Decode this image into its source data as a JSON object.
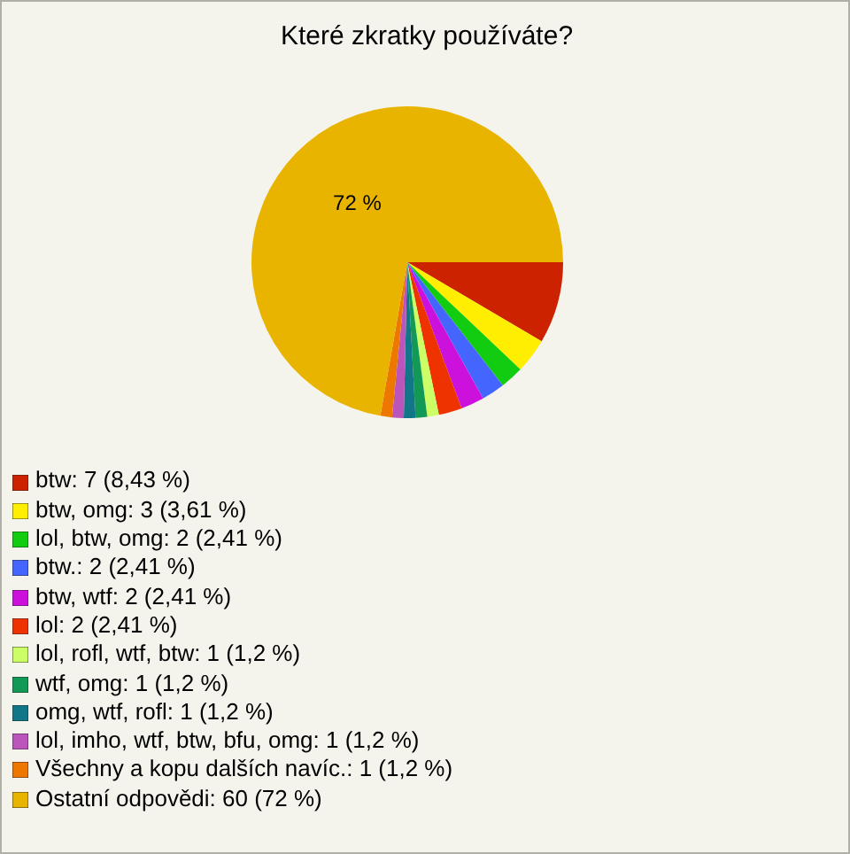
{
  "chart_data": {
    "type": "pie",
    "title": "Které zkratky používáte?",
    "categories": [
      "btw: 7 (8,43 %)",
      "btw, omg: 3 (3,61 %)",
      "lol, btw, omg: 2 (2,41 %)",
      "btw.: 2 (2,41 %)",
      "btw, wtf: 2 (2,41 %)",
      "lol: 2 (2,41 %)",
      "lol, rofl, wtf, btw: 1 (1,2 %)",
      "wtf, omg: 1 (1,2 %)",
      "omg, wtf, rofl: 1 (1,2 %)",
      "lol, imho, wtf, btw, bfu, omg: 1 (1,2 %)",
      "Všechny a kopu dalších navíc.: 1 (1,2 %)",
      "Ostatní odpovědi: 60 (72 %)"
    ],
    "values": [
      8.43,
      3.61,
      2.41,
      2.41,
      2.41,
      2.41,
      1.2,
      1.2,
      1.2,
      1.2,
      1.2,
      72
    ],
    "colors": [
      "#cc2200",
      "#ffee00",
      "#11cc11",
      "#4466ff",
      "#cc11dd",
      "#ee3300",
      "#ccff66",
      "#119955",
      "#117788",
      "#bb55bb",
      "#ee7700",
      "#e8b400"
    ],
    "value_labels": [
      null,
      null,
      null,
      null,
      null,
      null,
      null,
      null,
      null,
      null,
      null,
      "72 %"
    ],
    "legend": "bottom left"
  }
}
